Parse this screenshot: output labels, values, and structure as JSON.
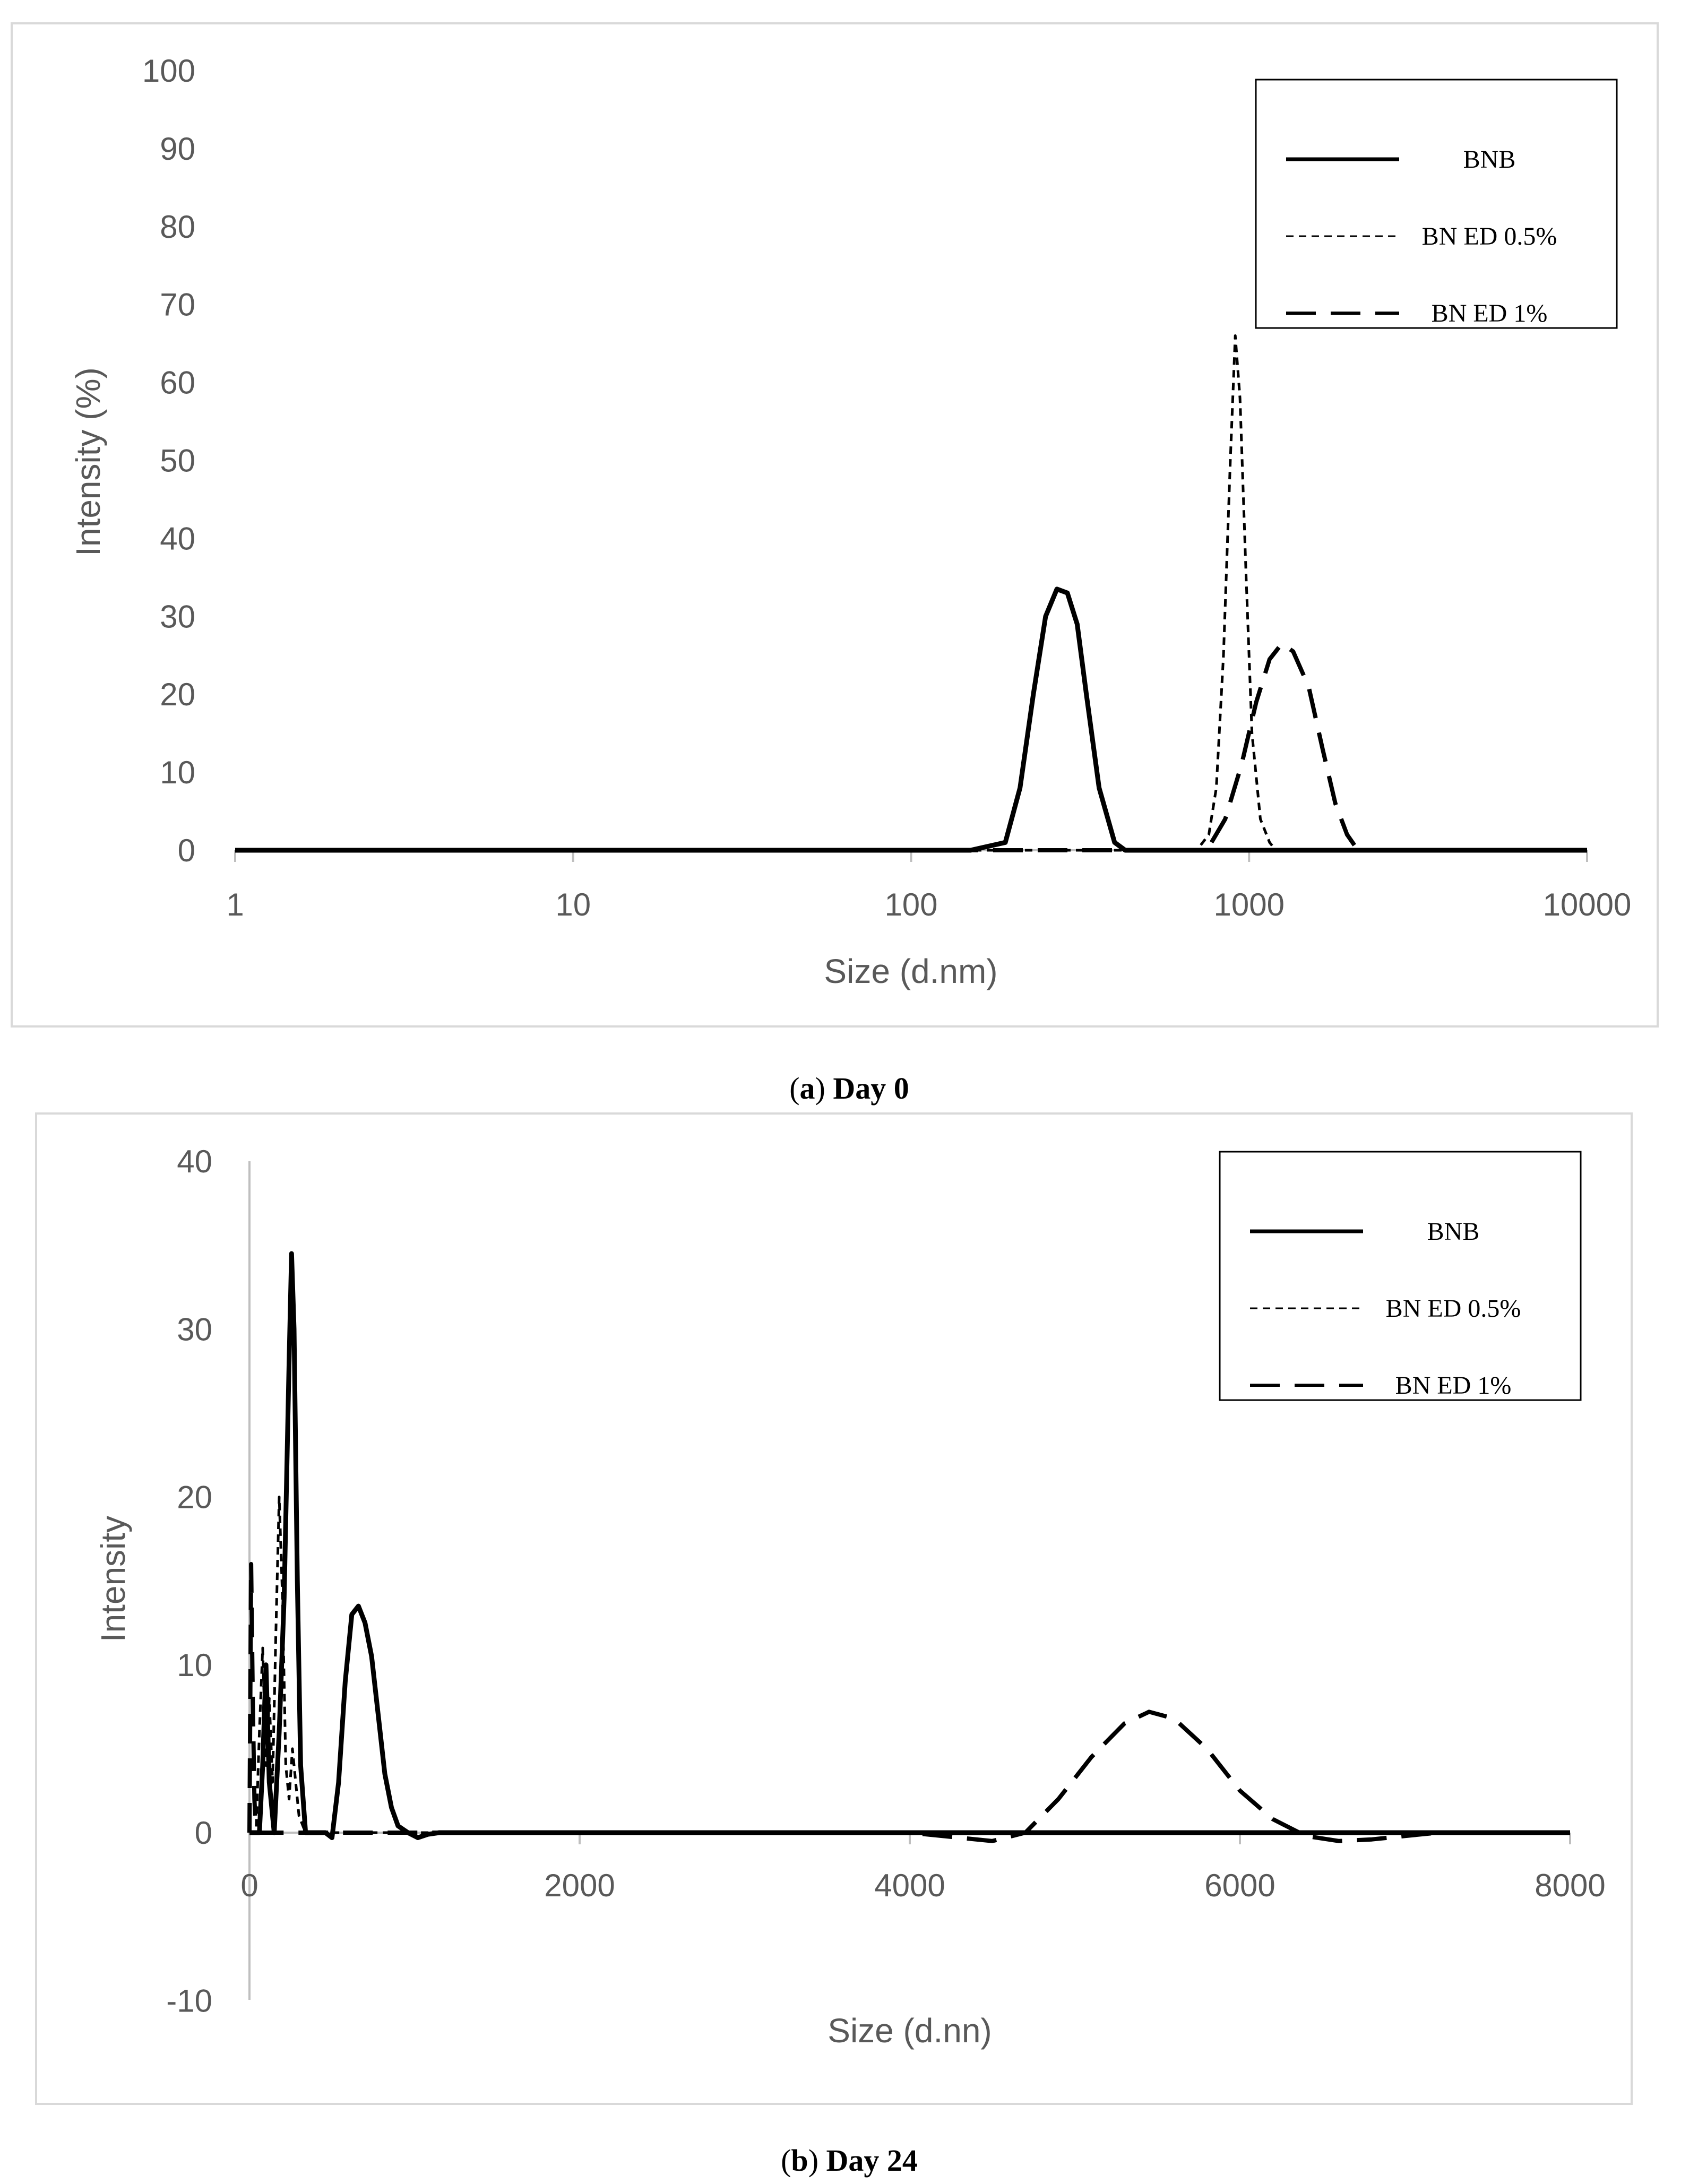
{
  "chart_data": [
    {
      "type": "line",
      "caption_letter": "a",
      "caption_text": "Day 0",
      "xscale": "log",
      "xlim": [
        1,
        10000
      ],
      "ylim": [
        0,
        100
      ],
      "xticks": [
        "1",
        "10",
        "100",
        "1000",
        "10000"
      ],
      "yticks": [
        "0",
        "10",
        "20",
        "30",
        "40",
        "50",
        "60",
        "70",
        "80",
        "90",
        "100"
      ],
      "xlabel": "Size (d.nm)",
      "ylabel": "Intensity (%)",
      "legend": "top-right",
      "series": [
        {
          "name": "BNB",
          "style": "solid",
          "x": [
            1,
            150,
            190,
            210,
            230,
            250,
            270,
            290,
            310,
            330,
            360,
            400,
            430,
            10000
          ],
          "y": [
            0,
            0,
            1,
            8,
            20,
            30,
            33.5,
            33,
            29,
            20,
            8,
            1,
            0,
            0
          ]
        },
        {
          "name": "BN ED 0.5%",
          "style": "dotted",
          "x": [
            1,
            700,
            760,
            800,
            840,
            880,
            910,
            940,
            980,
            1020,
            1080,
            1150,
            1200,
            10000
          ],
          "y": [
            0,
            0,
            2,
            8,
            25,
            50,
            66,
            58,
            35,
            15,
            4,
            1,
            0,
            0
          ]
        },
        {
          "name": "BN ED 1%",
          "style": "dashed",
          "x": [
            1,
            750,
            850,
            950,
            1050,
            1150,
            1250,
            1350,
            1500,
            1650,
            1800,
            1950,
            2100,
            10000
          ],
          "y": [
            0,
            0,
            4,
            11,
            19,
            24.5,
            26.5,
            25.5,
            21,
            13,
            6,
            2,
            0,
            0
          ]
        }
      ]
    },
    {
      "type": "line",
      "caption_letter": "b",
      "caption_text": "Day 24",
      "xscale": "linear",
      "xlim": [
        0,
        8000
      ],
      "ylim": [
        -10,
        40
      ],
      "xticks": [
        "0",
        "2000",
        "4000",
        "6000",
        "8000"
      ],
      "yticks": [
        "-10",
        "0",
        "10",
        "20",
        "30",
        "40"
      ],
      "xlabel": "Size (d.nn)",
      "ylabel": "Intensity",
      "legend": "top-right",
      "series": [
        {
          "name": "BNB",
          "style": "solid",
          "x": [
            0,
            60,
            80,
            100,
            120,
            150,
            180,
            210,
            240,
            255,
            270,
            290,
            310,
            340,
            380,
            420,
            460,
            500,
            540,
            580,
            620,
            660,
            700,
            740,
            780,
            820,
            860,
            900,
            960,
            1020,
            1080,
            1150,
            8000
          ],
          "y": [
            0,
            0,
            4,
            10,
            3,
            0,
            6,
            14,
            28,
            34.5,
            30,
            15,
            4,
            0,
            0,
            0,
            0,
            -0.3,
            3,
            9,
            13,
            13.5,
            12.5,
            10.5,
            7,
            3.5,
            1.5,
            0.4,
            0,
            -0.3,
            -0.1,
            0,
            0
          ]
        },
        {
          "name": "BN ED 0.5%",
          "style": "dotted",
          "x": [
            0,
            40,
            60,
            80,
            100,
            120,
            140,
            160,
            180,
            200,
            220,
            240,
            260,
            280,
            300,
            340,
            400,
            8000
          ],
          "y": [
            0,
            0,
            6,
            11,
            4,
            8,
            3,
            12,
            20,
            14,
            4,
            2,
            5,
            3,
            1,
            0,
            0,
            0
          ]
        },
        {
          "name": "BN ED 1%",
          "style": "dashed",
          "x": [
            0,
            10,
            20,
            30,
            40,
            60,
            4000,
            4300,
            4500,
            4700,
            4900,
            5100,
            5300,
            5450,
            5600,
            5800,
            6000,
            6200,
            6400,
            6600,
            6800,
            7000,
            7200,
            8000
          ],
          "y": [
            0,
            16,
            8,
            2,
            0,
            0,
            0,
            -0.3,
            -0.5,
            0,
            2,
            4.5,
            6.5,
            7.2,
            6.8,
            5,
            2.5,
            0.8,
            -0.2,
            -0.5,
            -0.4,
            -0.2,
            0,
            0
          ]
        }
      ]
    }
  ]
}
